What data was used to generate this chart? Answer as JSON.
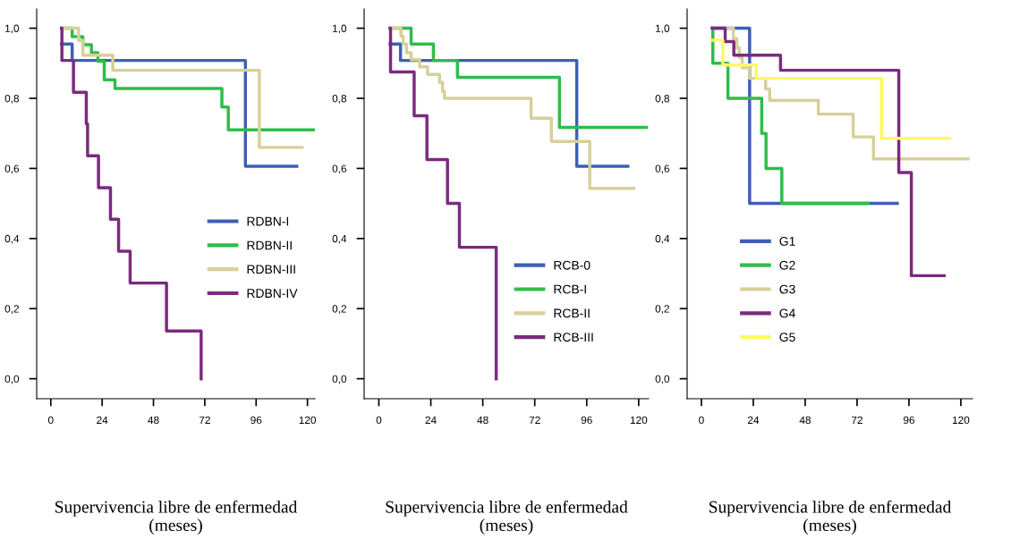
{
  "chart_data": [
    {
      "type": "step",
      "xlabel": "Supervivencia libre de enfermedad\n(meses)",
      "xlim": [
        -6.6,
        123.5
      ],
      "ylim": [
        -0.057,
        1.055
      ],
      "xticks": [
        0,
        24,
        48,
        72,
        96,
        120
      ],
      "yticks": [
        {
          "value": 0,
          "label": "0,0"
        },
        {
          "value": 0.2,
          "label": "0,2"
        },
        {
          "value": 0.4,
          "label": "0,4"
        },
        {
          "value": 0.6,
          "label": "0,6"
        },
        {
          "value": 0.8,
          "label": "0,8"
        },
        {
          "value": 1.0,
          "label": "1,0"
        }
      ],
      "grid": false,
      "legend": "center right",
      "series": [
        {
          "name": "RDBN-I",
          "color": "#3d5fb4",
          "x": [
            5,
            10,
            91,
            115
          ],
          "values": [
            0.955,
            0.908,
            0.606,
            0.606
          ]
        },
        {
          "name": "RDBN-II",
          "color": "#2fbd4a",
          "x": [
            5,
            10,
            15,
            19,
            22,
            25,
            30,
            80,
            83,
            123
          ],
          "values": [
            1.0,
            0.976,
            0.953,
            0.93,
            0.906,
            0.853,
            0.828,
            0.775,
            0.71,
            0.71
          ]
        },
        {
          "name": "RDBN-III",
          "color": "#d6d09a",
          "x": [
            5,
            13,
            15,
            29,
            97.5,
            117.5
          ],
          "values": [
            1.0,
            0.965,
            0.923,
            0.88,
            0.66,
            0.66
          ]
        },
        {
          "name": "RDBN-IV",
          "color": "#7b2a80",
          "x": [
            5,
            5.2,
            10.6,
            16.6,
            17.2,
            22.3,
            27.9,
            31.7,
            37.1,
            54.1,
            70.3
          ],
          "values": [
            1.0,
            0.908,
            0.817,
            0.727,
            0.636,
            0.545,
            0.455,
            0.364,
            0.273,
            0.136,
            0.0
          ]
        }
      ]
    },
    {
      "type": "step",
      "xlabel": "Supervivencia libre de enfermedad\n(meses)",
      "xlim": [
        -6.8,
        124.6
      ],
      "ylim": [
        -0.057,
        1.055
      ],
      "xticks": [
        0,
        24,
        48,
        72,
        96,
        120
      ],
      "yticks": [
        {
          "value": 0,
          "label": "0,0"
        },
        {
          "value": 0.2,
          "label": "0,2"
        },
        {
          "value": 0.4,
          "label": "0,4"
        },
        {
          "value": 0.6,
          "label": "0,6"
        },
        {
          "value": 0.8,
          "label": "0,8"
        },
        {
          "value": 1.0,
          "label": "1,0"
        }
      ],
      "grid": false,
      "legend": "lower right",
      "series": [
        {
          "name": "RCB-0",
          "color": "#3d5fb4",
          "x": [
            5.2,
            10,
            91.4,
            115
          ],
          "values": [
            0.955,
            0.908,
            0.606,
            0.606
          ]
        },
        {
          "name": "RCB-I",
          "color": "#2fbd4a",
          "x": [
            5.2,
            14.9,
            25.2,
            36.3,
            83.4,
            123.6
          ],
          "values": [
            1.0,
            0.955,
            0.908,
            0.86,
            0.717,
            0.717
          ]
        },
        {
          "name": "RCB-II",
          "color": "#d6d09a",
          "x": [
            5.2,
            10.2,
            11.2,
            12.8,
            14.9,
            18.8,
            22.5,
            28,
            29.4,
            30.3,
            70.3,
            79.7,
            97.4,
            117.7
          ],
          "values": [
            1.0,
            0.977,
            0.955,
            0.93,
            0.91,
            0.89,
            0.868,
            0.845,
            0.82,
            0.8,
            0.743,
            0.677,
            0.543,
            0.543
          ]
        },
        {
          "name": "RCB-III",
          "color": "#7b2a80",
          "x": [
            5.2,
            5.4,
            16.3,
            22.2,
            31.7,
            37.2,
            54.2
          ],
          "values": [
            1.0,
            0.875,
            0.75,
            0.625,
            0.5,
            0.375,
            0.0
          ]
        }
      ]
    },
    {
      "type": "step",
      "xlabel": "Supervivencia libre de enfermedad\n(meses)",
      "xlim": [
        -6.6,
        125.4
      ],
      "ylim": [
        -0.057,
        1.055
      ],
      "xticks": [
        0,
        24,
        48,
        72,
        96,
        120
      ],
      "yticks": [
        {
          "value": 0,
          "label": "0,0"
        },
        {
          "value": 0.2,
          "label": "0,2"
        },
        {
          "value": 0.4,
          "label": "0,4"
        },
        {
          "value": 0.6,
          "label": "0,6"
        },
        {
          "value": 0.8,
          "label": "0,8"
        },
        {
          "value": 1.0,
          "label": "1,0"
        }
      ],
      "grid": false,
      "legend": "lower left",
      "series": [
        {
          "name": "G1",
          "color": "#3d5fb4",
          "x": [
            5.1,
            22.3,
            90.6
          ],
          "values": [
            1.0,
            0.5,
            0.5
          ]
        },
        {
          "name": "G2",
          "color": "#2fbd4a",
          "x": [
            5.1,
            5.3,
            12.3,
            27.9,
            29.9,
            37.2,
            77.2
          ],
          "values": [
            1.0,
            0.9,
            0.8,
            0.7,
            0.6,
            0.5,
            0.5
          ]
        },
        {
          "name": "G3",
          "color": "#d6d09a",
          "x": [
            12,
            14.8,
            16.4,
            17.5,
            18.9,
            22.3,
            29.7,
            31.6,
            54.1,
            70.2,
            79.6,
            123.3
          ],
          "values": [
            1.0,
            0.97,
            0.944,
            0.916,
            0.887,
            0.857,
            0.827,
            0.794,
            0.755,
            0.69,
            0.627,
            0.627
          ]
        },
        {
          "name": "G4",
          "color": "#7b2a80",
          "x": [
            5.1,
            11,
            15,
            36.6,
            91.3,
            97.1,
            112.3
          ],
          "values": [
            1.0,
            0.962,
            0.923,
            0.88,
            0.588,
            0.294,
            0.294
          ]
        },
        {
          "name": "G5",
          "color": "#fdf963",
          "x": [
            5.1,
            9.9,
            25.4,
            83.3,
            114.8
          ],
          "values": [
            0.966,
            0.895,
            0.857,
            0.686,
            0.686
          ]
        }
      ]
    }
  ]
}
